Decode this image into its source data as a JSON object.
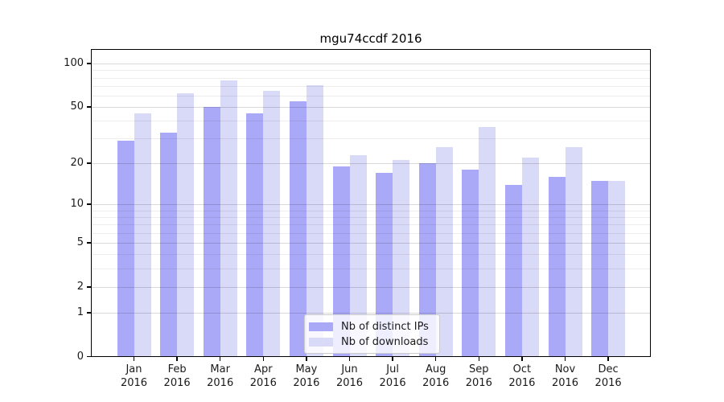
{
  "title": "mgu74ccdf 2016",
  "chart_data": {
    "type": "bar",
    "title": "mgu74ccdf 2016",
    "categories": [
      "Jan",
      "Feb",
      "Mar",
      "Apr",
      "May",
      "Jun",
      "Jul",
      "Aug",
      "Sep",
      "Oct",
      "Nov",
      "Dec"
    ],
    "x_tick_second_line": "2016",
    "series": [
      {
        "name": "Nb of distinct IPs",
        "color": "#a9a9f8",
        "values": [
          29,
          33,
          50,
          45,
          55,
          19,
          17,
          20,
          18,
          14,
          16,
          15
        ]
      },
      {
        "name": "Nb of downloads",
        "color": "#d9d9f8",
        "values": [
          45,
          62,
          77,
          65,
          71,
          23,
          21,
          26,
          36,
          22,
          26,
          15
        ]
      }
    ],
    "y_scale": "log1p",
    "y_ticks": [
      0,
      1,
      2,
      5,
      10,
      20,
      50,
      100
    ],
    "y_minor_gridlines": [
      3,
      4,
      6,
      7,
      8,
      9,
      30,
      40,
      60,
      70,
      80,
      90
    ],
    "ylim": [
      0,
      126
    ],
    "grid": true,
    "legend_position": "lower center",
    "colors": {
      "axis": "#000000",
      "background": "#ffffff",
      "grid_minor": "rgba(0,0,0,0.07)",
      "grid_major": "rgba(0,0,0,0.15)"
    }
  }
}
